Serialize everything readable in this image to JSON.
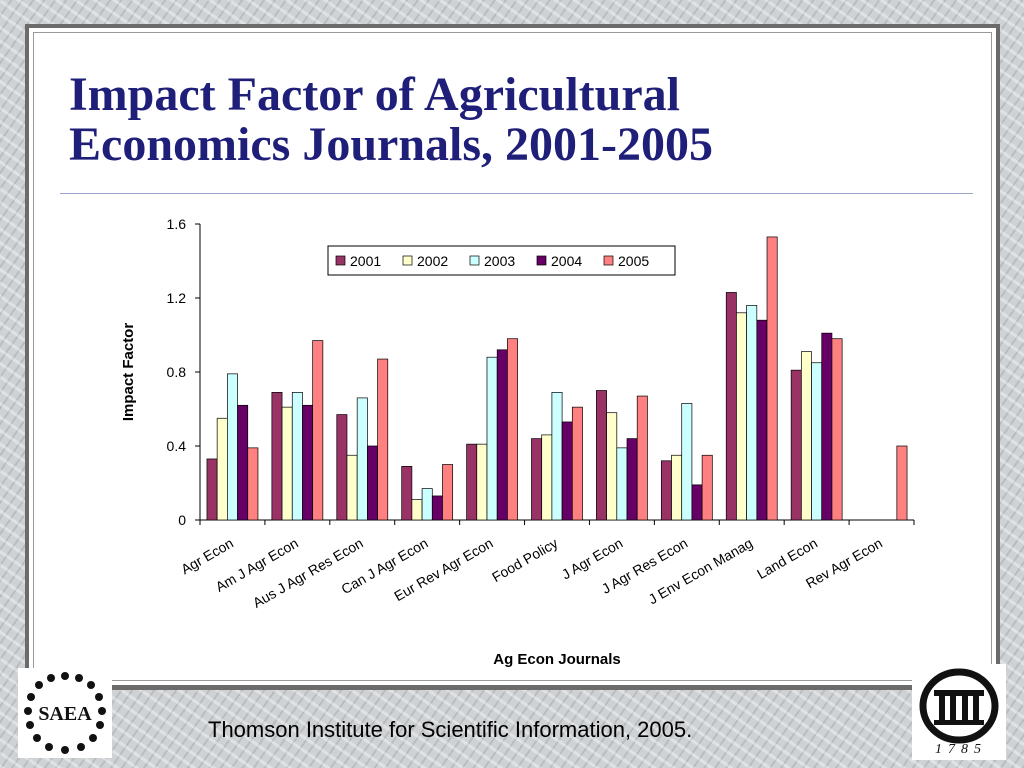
{
  "slide": {
    "title_line1": "Impact Factor of Agricultural",
    "title_line2": "Economics Journals, 2001-2005",
    "footer_citation": "Thomson Institute for Scientific Information, 2005.",
    "logo_left_text": "SAEA",
    "logo_right_text": "1785"
  },
  "colors": {
    "title": "#1f1f7a",
    "series": [
      "#993366",
      "#ffffcc",
      "#ccffff",
      "#660066",
      "#ff8080"
    ]
  },
  "chart_data": {
    "type": "bar",
    "title": "",
    "xlabel": "Ag Econ Journals",
    "ylabel": "Impact Factor",
    "ylim": [
      0,
      1.6
    ],
    "yticks": [
      "0",
      "0.4",
      "0.8",
      "1.2",
      "1.6"
    ],
    "legend_position": "top",
    "grid": false,
    "categories": [
      "Agr Econ",
      "Am J Agr Econ",
      "Aus J Agr Res Econ",
      "Can J Agr Econ",
      "Eur Rev Agr Econ",
      "Food Policy",
      "J Agr Econ",
      "J Agr Res Econ",
      "J Env Econ Manag",
      "Land Econ",
      "Rev Agr Econ"
    ],
    "series": [
      {
        "name": "2001",
        "values": [
          0.33,
          0.69,
          0.57,
          0.29,
          0.41,
          0.44,
          0.7,
          0.32,
          1.23,
          0.81,
          null
        ]
      },
      {
        "name": "2002",
        "values": [
          0.55,
          0.61,
          0.35,
          0.11,
          0.41,
          0.46,
          0.58,
          0.35,
          1.12,
          0.91,
          null
        ]
      },
      {
        "name": "2003",
        "values": [
          0.79,
          0.69,
          0.66,
          0.17,
          0.88,
          0.69,
          0.39,
          0.63,
          1.16,
          0.85,
          null
        ]
      },
      {
        "name": "2004",
        "values": [
          0.62,
          0.62,
          0.4,
          0.13,
          0.92,
          0.53,
          0.44,
          0.19,
          1.08,
          1.01,
          null
        ]
      },
      {
        "name": "2005",
        "values": [
          0.39,
          0.97,
          0.87,
          0.3,
          0.98,
          0.61,
          0.67,
          0.35,
          1.53,
          0.98,
          0.4
        ]
      }
    ]
  }
}
